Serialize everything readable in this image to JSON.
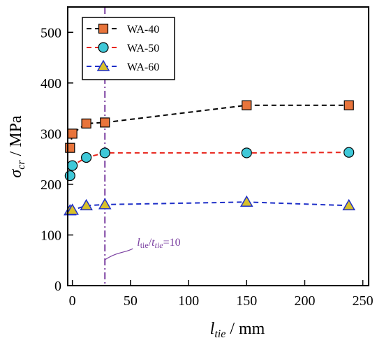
{
  "chart_data": {
    "type": "line",
    "xlabel": {
      "main": "l",
      "sub": "tie",
      "unit": " / mm"
    },
    "ylabel": {
      "main": "σ",
      "sub": "cr",
      "unit": " / MPa"
    },
    "xlim": [
      -4,
      255
    ],
    "ylim": [
      0,
      550
    ],
    "xticks": [
      0,
      50,
      100,
      150,
      200,
      250
    ],
    "yticks": [
      0,
      100,
      200,
      300,
      400,
      500
    ],
    "grid": false,
    "legend_position": "top-left",
    "series": [
      {
        "name": "WA-40",
        "color": "#000000",
        "marker": "square",
        "marker_fill": "#E8743B",
        "x": [
          -2,
          0,
          12,
          28,
          150,
          238
        ],
        "y": [
          272,
          300,
          320,
          322,
          356,
          356
        ]
      },
      {
        "name": "WA-50",
        "color": "#E8241B",
        "marker": "circle",
        "marker_fill": "#3FC8D8",
        "x": [
          -2,
          0,
          12,
          28,
          150,
          238
        ],
        "y": [
          217,
          237,
          253,
          262,
          262,
          263
        ]
      },
      {
        "name": "WA-60",
        "color": "#1E2FC8",
        "marker": "triangle",
        "marker_fill": "#D8C02A",
        "x": [
          -2,
          0,
          12,
          28,
          150,
          238
        ],
        "y": [
          148,
          149,
          158,
          160,
          165,
          158
        ]
      }
    ],
    "reference_line": {
      "x": 28,
      "color": "#7A3FA0",
      "style": "dash-dot",
      "label": {
        "l": "l",
        "l_sub": "tie",
        "t": "t",
        "t_sub": "tie",
        "value": "=10"
      }
    }
  }
}
